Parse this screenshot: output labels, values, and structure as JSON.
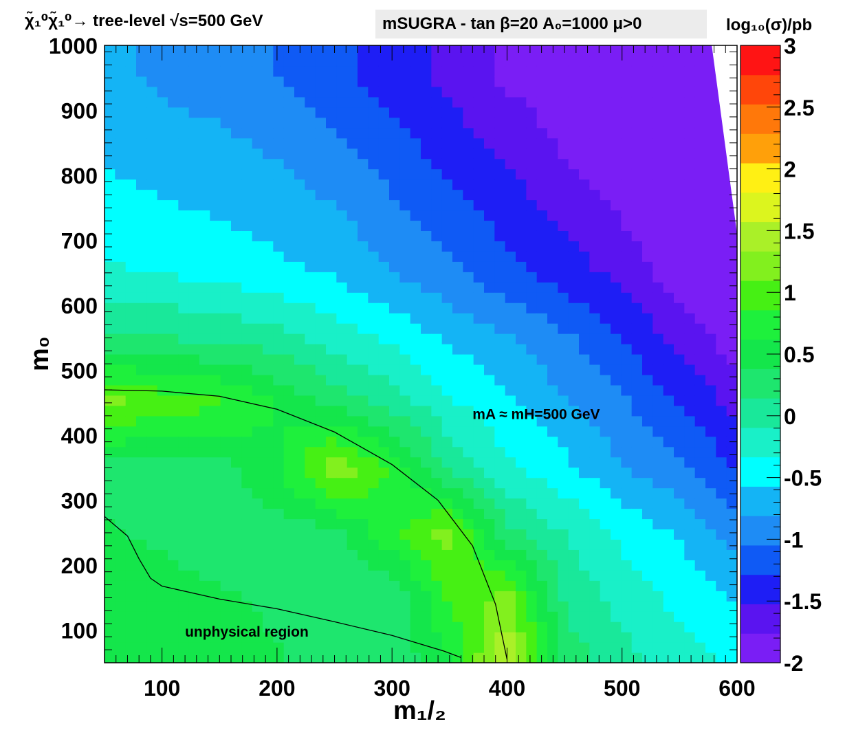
{
  "chart_data": {
    "type": "heatmap",
    "process_label": "χ̃₁⁰χ̃₁⁰→ tree-level √s=500 GeV",
    "header_text": "mSUGRA - tan β=20  A₀=1000 μ>0",
    "colorbar_title": "log₁₀(σ)/pb",
    "xlabel": "m₁/₂",
    "ylabel": "m₀",
    "xlim": [
      50,
      600
    ],
    "ylim": [
      50,
      1000
    ],
    "zlim": [
      -2,
      3
    ],
    "x_ticks": [
      "100",
      "200",
      "300",
      "400",
      "500",
      "600"
    ],
    "y_ticks": [
      "100",
      "200",
      "300",
      "400",
      "500",
      "600",
      "700",
      "800",
      "900",
      "1000"
    ],
    "z_ticks": [
      "-2",
      "-1.5",
      "-1",
      "-0.5",
      "0",
      "0.5",
      "1",
      "1.5",
      "2",
      "2.5",
      "3"
    ],
    "palette": [
      "#7a1ef5",
      "#5a14f0",
      "#1e1ef5",
      "#0f5af5",
      "#1e8cf5",
      "#14b4f5",
      "#00ffff",
      "#19f0c8",
      "#19e89a",
      "#1ee66e",
      "#14e64b",
      "#1ef03c",
      "#46f014",
      "#82f01e",
      "#aaf028",
      "#dcf51e",
      "#fff014",
      "#ffa00a",
      "#ff780a",
      "#ff460a",
      "#ff1414"
    ],
    "annotations": [
      {
        "text": "mA ≈ mH=500 GeV",
        "x": 370,
        "y": 425
      },
      {
        "text": "unphysical region",
        "x": 120,
        "y": 90
      }
    ],
    "contour_line": {
      "label": "mA ≈ mH=500 GeV",
      "points": [
        [
          50,
          470
        ],
        [
          100,
          468
        ],
        [
          150,
          460
        ],
        [
          200,
          440
        ],
        [
          250,
          405
        ],
        [
          300,
          355
        ],
        [
          340,
          300
        ],
        [
          370,
          230
        ],
        [
          390,
          140
        ],
        [
          400,
          55
        ]
      ]
    },
    "unphysical_boundary": {
      "points": [
        [
          50,
          275
        ],
        [
          70,
          245
        ],
        [
          80,
          210
        ],
        [
          90,
          180
        ],
        [
          100,
          168
        ],
        [
          150,
          148
        ],
        [
          200,
          133
        ],
        [
          250,
          113
        ],
        [
          300,
          92
        ],
        [
          345,
          68
        ],
        [
          360,
          58
        ]
      ]
    },
    "field_samples": {
      "m12": [
        50,
        100,
        150,
        200,
        250,
        300,
        350,
        400,
        450,
        500,
        550,
        600
      ],
      "m0": [
        50,
        150,
        250,
        350,
        450,
        550,
        650,
        750,
        850,
        950
      ],
      "log10_sigma": [
        [
          0.45,
          0.45,
          0.45,
          0.4,
          0.3,
          0.2,
          0.6,
          1.6,
          0.3,
          0.0,
          -0.2,
          -0.4
        ],
        [
          0.45,
          0.45,
          0.4,
          0.35,
          0.25,
          0.15,
          0.9,
          1.2,
          0.1,
          -0.2,
          -0.4,
          -0.6
        ],
        [
          0.4,
          0.35,
          0.3,
          0.25,
          0.3,
          0.8,
          1.2,
          0.2,
          -0.1,
          -0.4,
          -0.6,
          -0.9
        ],
        [
          0.3,
          0.25,
          0.3,
          0.6,
          1.3,
          0.8,
          0.1,
          -0.3,
          -0.5,
          -0.8,
          -1.0,
          -1.3
        ],
        [
          1.2,
          1.0,
          0.9,
          0.6,
          0.3,
          0.05,
          -0.3,
          -0.5,
          -0.8,
          -1.0,
          -1.3,
          -1.6
        ],
        [
          0.2,
          0.15,
          0.1,
          0.0,
          -0.2,
          -0.4,
          -0.6,
          -0.8,
          -1.0,
          -1.3,
          -1.6,
          -1.9
        ],
        [
          -0.3,
          -0.35,
          -0.4,
          -0.5,
          -0.6,
          -0.8,
          -1.0,
          -1.2,
          -1.4,
          -1.6,
          -1.9,
          -2.0
        ],
        [
          -0.5,
          -0.55,
          -0.6,
          -0.7,
          -0.8,
          -1.0,
          -1.2,
          -1.4,
          -1.6,
          -1.8,
          -2.0,
          -2.0
        ],
        [
          -0.6,
          -0.7,
          -0.75,
          -0.85,
          -1.0,
          -1.2,
          -1.4,
          -1.6,
          -1.8,
          -2.0,
          -2.0,
          -2.0
        ],
        [
          -0.75,
          -0.85,
          -0.95,
          -1.05,
          -1.2,
          -1.4,
          -1.6,
          -1.8,
          -1.9,
          -2.0,
          -2.0,
          -2.0
        ]
      ]
    }
  }
}
